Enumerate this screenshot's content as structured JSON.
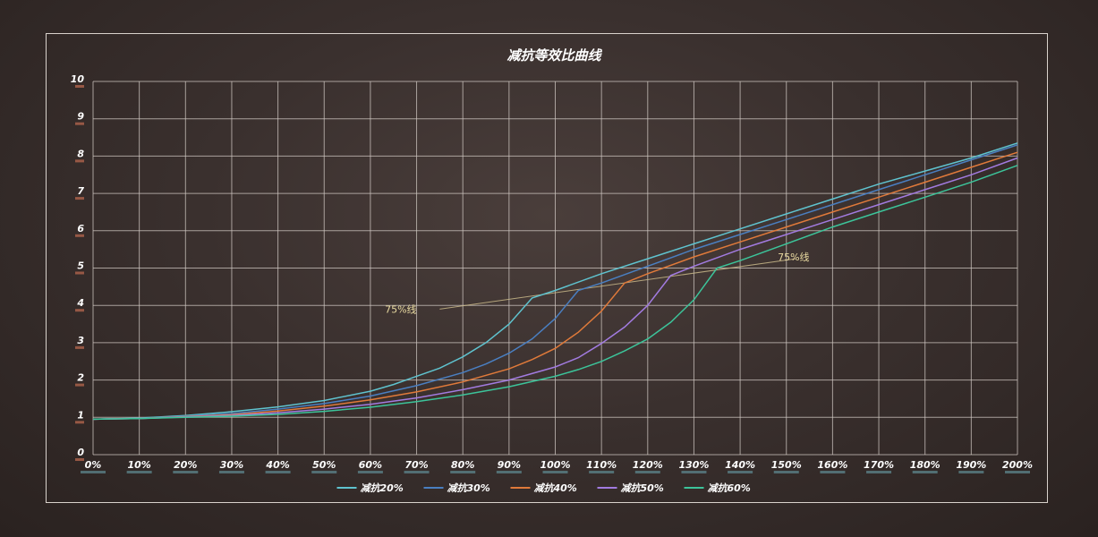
{
  "chart_data": {
    "type": "line",
    "title": "减抗等效比曲线",
    "x_tick_labels": [
      "0%",
      "10%",
      "20%",
      "30%",
      "40%",
      "50%",
      "60%",
      "70%",
      "80%",
      "90%",
      "100%",
      "110%",
      "120%",
      "130%",
      "140%",
      "150%",
      "160%",
      "170%",
      "180%",
      "190%",
      "200%"
    ],
    "y_tick_labels": [
      "0",
      "1",
      "2",
      "3",
      "4",
      "5",
      "6",
      "7",
      "8",
      "9",
      "10"
    ],
    "xlim": [
      0,
      200
    ],
    "ylim": [
      0,
      10
    ],
    "grid": true,
    "legend_position": "bottom",
    "annotations": [
      {
        "text": "75%线",
        "x": 70,
        "y": 3.8
      },
      {
        "text": "75%线",
        "x": 155,
        "y": 5.2
      }
    ],
    "reference_line": {
      "x": [
        75,
        152
      ],
      "y": [
        3.9,
        5.25
      ]
    },
    "series": [
      {
        "name": "减抗20%",
        "color": "#5fc3cf",
        "x": [
          0,
          10,
          20,
          30,
          40,
          50,
          60,
          65,
          70,
          75,
          80,
          85,
          90,
          95,
          100,
          110,
          120,
          130,
          140,
          150,
          160,
          170,
          180,
          190,
          200
        ],
        "y": [
          0.95,
          0.98,
          1.05,
          1.15,
          1.28,
          1.45,
          1.7,
          1.88,
          2.1,
          2.32,
          2.62,
          3.0,
          3.5,
          4.2,
          4.4,
          4.85,
          5.25,
          5.65,
          6.05,
          6.45,
          6.85,
          7.25,
          7.6,
          7.95,
          8.35
        ]
      },
      {
        "name": "减抗30%",
        "color": "#4a7fc1",
        "x": [
          0,
          10,
          20,
          30,
          40,
          50,
          60,
          70,
          80,
          85,
          90,
          95,
          100,
          105,
          110,
          120,
          130,
          140,
          150,
          160,
          170,
          180,
          190,
          200
        ],
        "y": [
          0.95,
          0.97,
          1.03,
          1.1,
          1.22,
          1.37,
          1.57,
          1.85,
          2.2,
          2.43,
          2.72,
          3.1,
          3.65,
          4.4,
          4.6,
          5.05,
          5.5,
          5.9,
          6.3,
          6.7,
          7.1,
          7.5,
          7.9,
          8.3
        ]
      },
      {
        "name": "减抗40%",
        "color": "#e07a3a",
        "x": [
          0,
          10,
          20,
          30,
          40,
          50,
          60,
          70,
          80,
          90,
          95,
          100,
          105,
          110,
          115,
          120,
          130,
          140,
          150,
          160,
          170,
          180,
          190,
          200
        ],
        "y": [
          0.95,
          0.97,
          1.02,
          1.07,
          1.17,
          1.3,
          1.47,
          1.68,
          1.95,
          2.3,
          2.55,
          2.85,
          3.28,
          3.85,
          4.6,
          4.85,
          5.3,
          5.7,
          6.1,
          6.5,
          6.9,
          7.3,
          7.7,
          8.1
        ]
      },
      {
        "name": "减抗50%",
        "color": "#a27be0",
        "x": [
          0,
          10,
          20,
          30,
          40,
          50,
          60,
          70,
          80,
          90,
          100,
          105,
          110,
          115,
          120,
          125,
          130,
          140,
          150,
          160,
          170,
          180,
          190,
          200
        ],
        "y": [
          0.95,
          0.97,
          1.01,
          1.05,
          1.12,
          1.22,
          1.35,
          1.52,
          1.74,
          2.0,
          2.35,
          2.6,
          2.98,
          3.42,
          4.0,
          4.8,
          5.05,
          5.5,
          5.9,
          6.3,
          6.7,
          7.1,
          7.5,
          7.95
        ]
      },
      {
        "name": "减抗60%",
        "color": "#3cc49a",
        "x": [
          0,
          10,
          20,
          30,
          40,
          50,
          60,
          70,
          80,
          90,
          100,
          105,
          110,
          115,
          120,
          125,
          130,
          135,
          140,
          150,
          160,
          170,
          180,
          190,
          200
        ],
        "y": [
          0.95,
          0.97,
          1.0,
          1.03,
          1.08,
          1.16,
          1.27,
          1.42,
          1.6,
          1.82,
          2.1,
          2.28,
          2.5,
          2.78,
          3.1,
          3.55,
          4.15,
          5.0,
          5.2,
          5.65,
          6.1,
          6.5,
          6.9,
          7.3,
          7.75
        ]
      }
    ]
  }
}
